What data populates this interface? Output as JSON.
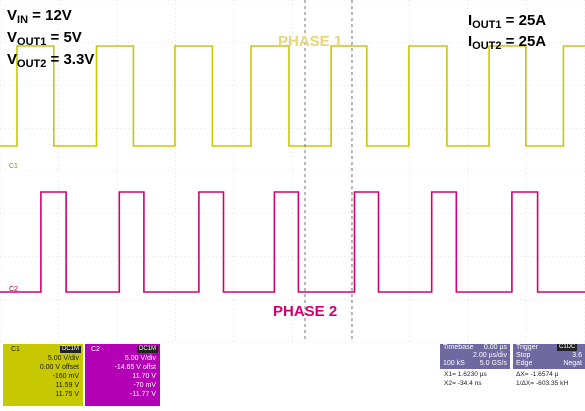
{
  "conditions": {
    "vin": {
      "sym": "V",
      "sub": "IN",
      "val": " = 12V"
    },
    "vout1": {
      "sym": "V",
      "sub": "OUT1",
      "val": " = 5V"
    },
    "vout2": {
      "sym": "V",
      "sub": "OUT2",
      "val": " = 3.3V"
    },
    "iout1": {
      "sym": "I",
      "sub": "OUT1",
      "val": " = 25A"
    },
    "iout2": {
      "sym": "I",
      "sub": "OUT2",
      "val": " = 25A"
    }
  },
  "phase_labels": {
    "phase1": "PHASE 1",
    "phase2": "PHASE 2"
  },
  "colors": {
    "ch1": "#c8c800",
    "ch2": "#d4006e",
    "grid": "#cfcfcf",
    "cursor": "#555555"
  },
  "channel_markers": {
    "c1": "C1",
    "c2": "C2"
  },
  "ch1_panel": {
    "label": "C1",
    "tag": "DC1M",
    "vdiv": "5.00 V/div",
    "offset": "0.00 V offset",
    "r1": "-160 mV",
    "r2": "11.59 V",
    "r3": "11.75 V"
  },
  "ch2_panel": {
    "label": "C2",
    "tag": "DC1M",
    "vdiv": "5.00 V/div",
    "offset": "-14.65 V offst",
    "r1": "11.70 V",
    "r2": "-70 mV",
    "r3": "-11.77 V"
  },
  "timebase": {
    "label": "Timebase",
    "delay": "0.00 µs",
    "tdiv": "2.00 µs/div",
    "ks": "100 kS",
    "gs": "5.0 GS/s"
  },
  "trigger": {
    "label": "Trigger",
    "tag": "C1DC",
    "mode": "Stop",
    "level": "3.6",
    "type": "Edge",
    "slope": "Negat"
  },
  "measurements": {
    "x1": "X1= 1.6230 µs",
    "dx": "ΔX= -1.6574 µ",
    "x2": "X2= -34.4 ns",
    "inv": "1/ΔX= -603.35 kH"
  },
  "chart_data": {
    "type": "line",
    "title": "",
    "xlabel": "",
    "ylabel": "",
    "x_unit_per_div": "2.00 µs/div",
    "y_unit_per_div": "5.00 V/div",
    "xlim_div": [
      0,
      10
    ],
    "grid": true,
    "legend": "none",
    "series": [
      {
        "name": "PHASE 1",
        "color": "#c8c800",
        "x": [
          0.0,
          0.29,
          0.29,
          0.92,
          0.92,
          1.65,
          1.65,
          2.28,
          2.28,
          2.99,
          2.99,
          3.63,
          3.63,
          4.29,
          4.29,
          4.94,
          4.94,
          5.66,
          5.66,
          6.27,
          6.27,
          6.99,
          6.99,
          7.64,
          7.64,
          8.36,
          8.36,
          8.99,
          8.99,
          9.63,
          9.63,
          10.0
        ],
        "y": [
          0.0,
          0.0,
          11.7,
          11.7,
          0.0,
          0.0,
          11.7,
          11.7,
          0.0,
          0.0,
          11.7,
          11.7,
          0.0,
          0.0,
          11.7,
          11.7,
          0.0,
          0.0,
          11.7,
          11.7,
          0.0,
          0.0,
          11.7,
          11.7,
          0.0,
          0.0,
          11.7,
          11.7,
          0.0,
          0.0,
          11.7,
          11.7
        ]
      },
      {
        "name": "PHASE 2",
        "color": "#d4006e",
        "x": [
          0.0,
          0.7,
          0.7,
          1.13,
          1.13,
          2.04,
          2.04,
          2.46,
          2.46,
          3.4,
          3.4,
          3.82,
          3.82,
          4.69,
          4.69,
          5.1,
          5.1,
          6.06,
          6.06,
          6.47,
          6.47,
          7.38,
          7.38,
          7.8,
          7.8,
          8.75,
          8.75,
          9.19,
          9.19,
          10.0
        ],
        "y": [
          0.0,
          0.0,
          11.7,
          11.7,
          0.0,
          0.0,
          11.7,
          11.7,
          0.0,
          0.0,
          11.7,
          11.7,
          0.0,
          0.0,
          11.7,
          11.7,
          0.0,
          0.0,
          11.7,
          11.7,
          0.0,
          0.0,
          11.7,
          11.7,
          0.0,
          0.0,
          11.7,
          11.7,
          0.0,
          0.0
        ]
      }
    ]
  }
}
